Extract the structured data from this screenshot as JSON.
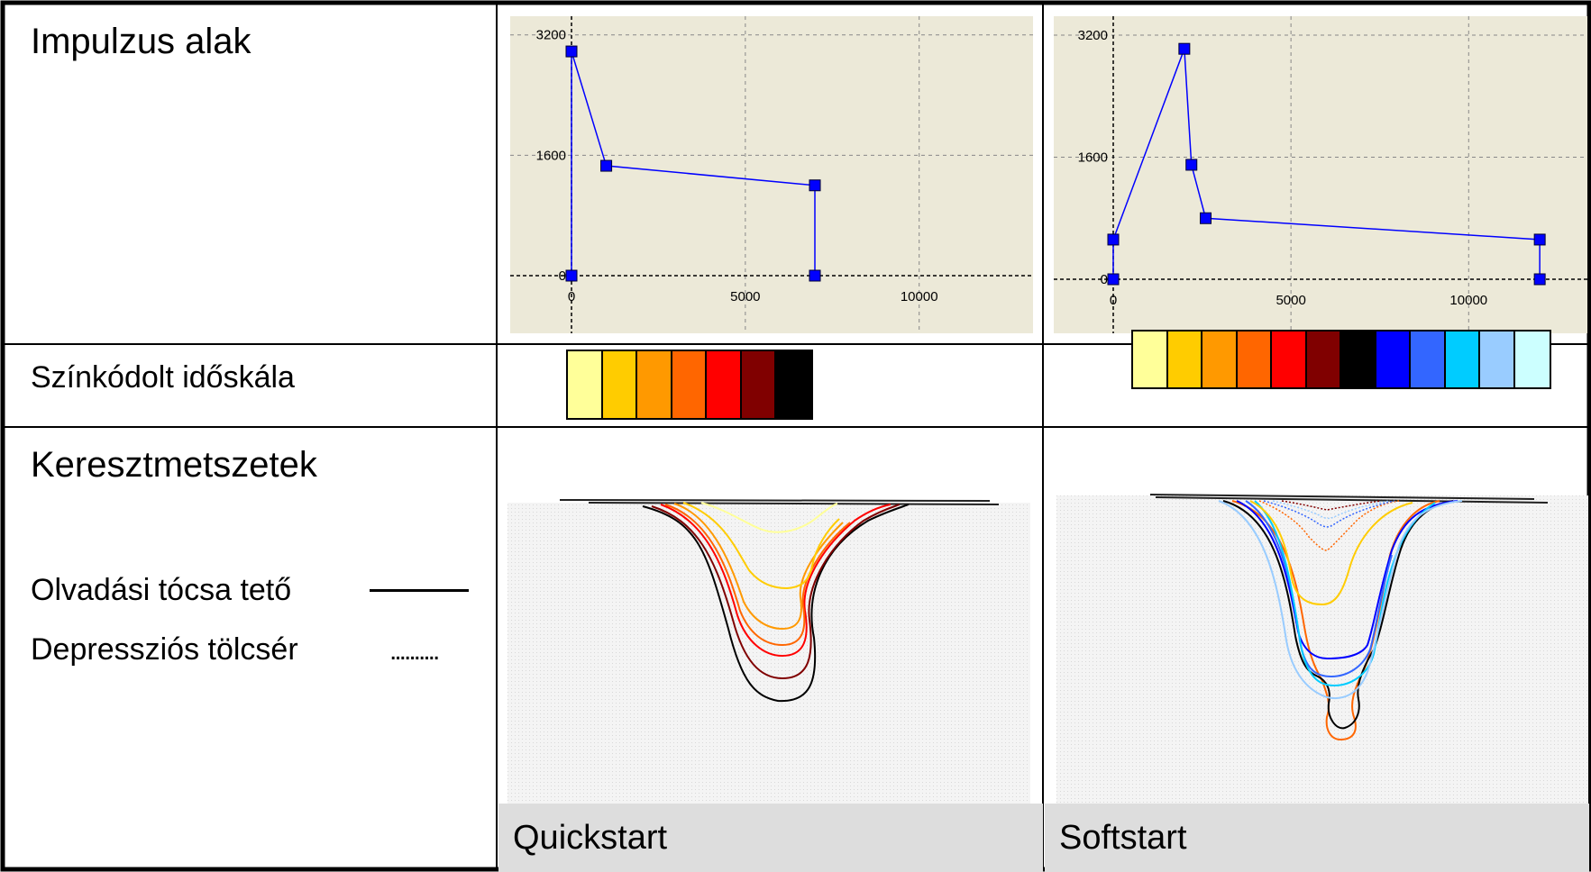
{
  "rows": {
    "pulse_label": "Impulzus alak",
    "timescale_label": "Színkódolt időskála",
    "sections_label": "Keresztmetszetek"
  },
  "legend": {
    "pool_top_label": "Olvadási tócsa tető",
    "depression_label": "Depressziós tölcsér",
    "depression_marker": ".........."
  },
  "columns": {
    "left_title": "Quickstart",
    "right_title": "Softstart"
  },
  "colors": {
    "plot_bg": "#ece9d8",
    "pulse_line": "#0000ff",
    "marker": "#0000ff"
  },
  "timescale": {
    "quickstart": [
      "#ffff99",
      "#ffcc00",
      "#ff9900",
      "#ff6600",
      "#ff0000",
      "#800000",
      "#000000"
    ],
    "softstart": [
      "#ffff99",
      "#ffcc00",
      "#ff9900",
      "#ff6600",
      "#ff0000",
      "#800000",
      "#000000",
      "#0000ff",
      "#3366ff",
      "#00ccff",
      "#99ccff",
      "#ccffff"
    ]
  },
  "chart_data": [
    {
      "type": "line",
      "title": "",
      "xlabel": "",
      "ylabel": "",
      "xlim": [
        0,
        14000
      ],
      "ylim": [
        0,
        3400
      ],
      "xticks": [
        "0",
        "5000",
        "10000"
      ],
      "xtick_values": [
        0,
        5000,
        10000
      ],
      "yticks": [
        "0",
        "1600",
        "3200"
      ],
      "ytick_values": [
        0,
        1600,
        3200
      ],
      "grid": true,
      "series": [
        {
          "x": [
            0,
            0,
            1000,
            7000,
            7000
          ],
          "y": [
            0,
            2980,
            1460,
            1200,
            0
          ]
        }
      ]
    },
    {
      "type": "line",
      "title": "",
      "xlabel": "",
      "ylabel": "",
      "xlim": [
        0,
        14000
      ],
      "ylim": [
        0,
        3400
      ],
      "xticks": [
        "0",
        "5000",
        "10000"
      ],
      "xtick_values": [
        0,
        5000,
        10000
      ],
      "yticks": [
        "0",
        "1600",
        "3200"
      ],
      "ytick_values": [
        0,
        1600,
        3200
      ],
      "grid": true,
      "series": [
        {
          "x": [
            0,
            0,
            2000,
            2200,
            2600,
            12000,
            12000
          ],
          "y": [
            0,
            520,
            3020,
            1500,
            800,
            520,
            0
          ]
        }
      ]
    }
  ]
}
